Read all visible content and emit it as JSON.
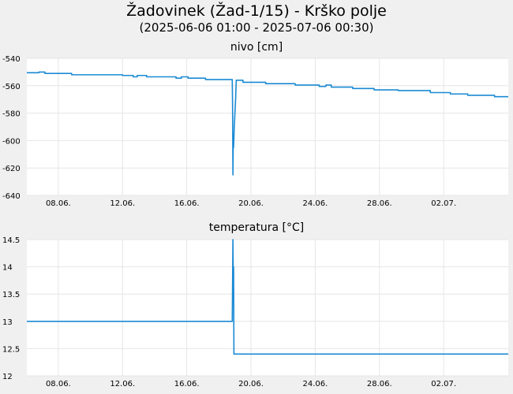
{
  "title": "Žadovinek (Žad-1/15) - Krško polje",
  "subtitle": "(2025-06-06 01:00 - 2025-07-06 00:30)",
  "colors": {
    "series": "#1a8ad4",
    "grid": "#e6e6e6",
    "background": "#f0f0f0",
    "plot_background": "#ffffff"
  },
  "chart_data": [
    {
      "type": "line",
      "title": "nivo [cm]",
      "xlim": [
        "2025-06-06T01:00",
        "2025-07-06T00:30"
      ],
      "ylim": [
        -640,
        -540
      ],
      "x_ticks": [
        "08.06.",
        "12.06.",
        "16.06.",
        "20.06.",
        "24.06.",
        "28.06.",
        "02.07."
      ],
      "y_ticks": [
        "-540",
        "-560",
        "-580",
        "-600",
        "-620",
        "-640"
      ],
      "grid": true,
      "series": [
        {
          "points": [
            [
              "2025-06-06T01:00",
              -550.5
            ],
            [
              "2025-06-06T19:00",
              -550.5
            ],
            [
              "2025-06-06T19:00",
              -550
            ],
            [
              "2025-06-07T04:00",
              -550
            ],
            [
              "2025-06-07T04:00",
              -551
            ],
            [
              "2025-06-08T20:00",
              -551
            ],
            [
              "2025-06-08T20:00",
              -552
            ],
            [
              "2025-06-12T00:00",
              -552
            ],
            [
              "2025-06-12T00:00",
              -552.5
            ],
            [
              "2025-06-12T16:00",
              -552.5
            ],
            [
              "2025-06-12T16:00",
              -553.5
            ],
            [
              "2025-06-12T22:00",
              -553.5
            ],
            [
              "2025-06-12T22:00",
              -552.5
            ],
            [
              "2025-06-13T12:00",
              -552.5
            ],
            [
              "2025-06-13T12:00",
              -553.5
            ],
            [
              "2025-06-15T08:00",
              -553.5
            ],
            [
              "2025-06-15T08:00",
              -554.5
            ],
            [
              "2025-06-15T16:00",
              -554.5
            ],
            [
              "2025-06-15T16:00",
              -553.5
            ],
            [
              "2025-06-16T02:00",
              -553.5
            ],
            [
              "2025-06-16T02:00",
              -554.5
            ],
            [
              "2025-06-17T04:00",
              -554.5
            ],
            [
              "2025-06-17T04:00",
              -555.5
            ],
            [
              "2025-06-18T20:00",
              -555.5
            ],
            [
              "2025-06-18T20:30",
              -575
            ],
            [
              "2025-06-18T21:00",
              -625
            ],
            [
              "2025-06-18T21:30",
              -600
            ],
            [
              "2025-06-18T22:00",
              -605
            ],
            [
              "2025-06-18T23:00",
              -590
            ],
            [
              "2025-06-19T01:00",
              -570
            ],
            [
              "2025-06-19T02:00",
              -556
            ],
            [
              "2025-06-19T12:00",
              -556
            ],
            [
              "2025-06-19T12:00",
              -557.5
            ],
            [
              "2025-06-20T22:00",
              -557.5
            ],
            [
              "2025-06-20T22:00",
              -558.5
            ],
            [
              "2025-06-22T18:00",
              -558.5
            ],
            [
              "2025-06-22T18:00",
              -559.5
            ],
            [
              "2025-06-24T06:00",
              -559.5
            ],
            [
              "2025-06-24T06:00",
              -560.5
            ],
            [
              "2025-06-24T16:00",
              -560.5
            ],
            [
              "2025-06-24T16:00",
              -559.5
            ],
            [
              "2025-06-25T00:00",
              -559.5
            ],
            [
              "2025-06-25T00:00",
              -561
            ],
            [
              "2025-06-26T08:00",
              -561
            ],
            [
              "2025-06-26T08:00",
              -562
            ],
            [
              "2025-06-27T16:00",
              -562
            ],
            [
              "2025-06-27T16:00",
              -563
            ],
            [
              "2025-06-29T04:00",
              -563
            ],
            [
              "2025-06-29T04:00",
              -563.5
            ],
            [
              "2025-07-01T04:00",
              -563.5
            ],
            [
              "2025-07-01T04:00",
              -565
            ],
            [
              "2025-07-02T10:00",
              -565
            ],
            [
              "2025-07-02T10:00",
              -566
            ],
            [
              "2025-07-03T12:00",
              -566
            ],
            [
              "2025-07-03T12:00",
              -567
            ],
            [
              "2025-07-05T04:00",
              -567
            ],
            [
              "2025-07-05T04:00",
              -568
            ],
            [
              "2025-07-06T00:30",
              -568
            ]
          ]
        }
      ]
    },
    {
      "type": "line",
      "title": "temperatura [°C]",
      "xlim": [
        "2025-06-06T01:00",
        "2025-07-06T00:30"
      ],
      "ylim": [
        12,
        14.5
      ],
      "x_ticks": [
        "08.06.",
        "12.06.",
        "16.06.",
        "20.06.",
        "24.06.",
        "28.06.",
        "02.07."
      ],
      "y_ticks": [
        "14.5",
        "14",
        "13.5",
        "13",
        "12.5",
        "12"
      ],
      "grid": true,
      "series": [
        {
          "points": [
            [
              "2025-06-06T01:00",
              13.0
            ],
            [
              "2025-06-18T20:00",
              13.0
            ],
            [
              "2025-06-18T20:30",
              13.7
            ],
            [
              "2025-06-18T21:00",
              14.5
            ],
            [
              "2025-06-18T21:30",
              13.8
            ],
            [
              "2025-06-18T22:00",
              14.0
            ],
            [
              "2025-06-18T22:30",
              12.4
            ],
            [
              "2025-07-06T00:30",
              12.4
            ]
          ]
        }
      ]
    }
  ]
}
